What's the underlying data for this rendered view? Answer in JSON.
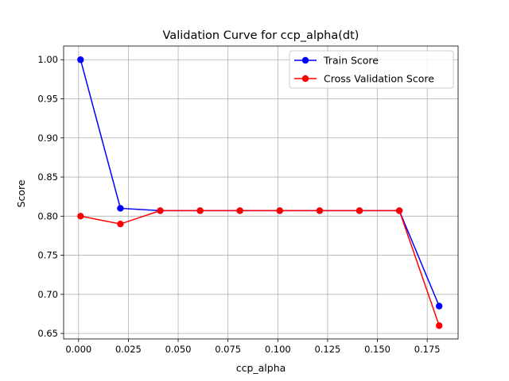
{
  "chart_data": {
    "type": "line",
    "title": "Validation Curve for ccp_alpha(dt)",
    "xlabel": "ccp_alpha",
    "ylabel": "Score",
    "xlim": [
      -0.0075,
      0.1905
    ],
    "ylim": [
      0.643,
      1.0175
    ],
    "grid": true,
    "legend_position": "top-right",
    "x_ticks": [
      "0.000",
      "0.025",
      "0.050",
      "0.075",
      "0.100",
      "0.125",
      "0.150",
      "0.175"
    ],
    "x_tick_values": [
      0.0,
      0.025,
      0.05,
      0.075,
      0.1,
      0.125,
      0.15,
      0.175
    ],
    "y_ticks": [
      "0.65",
      "0.70",
      "0.75",
      "0.80",
      "0.85",
      "0.90",
      "0.95",
      "1.00"
    ],
    "y_tick_values": [
      0.65,
      0.7,
      0.75,
      0.8,
      0.85,
      0.9,
      0.95,
      1.0
    ],
    "x": [
      0.001,
      0.021,
      0.041,
      0.061,
      0.081,
      0.101,
      0.121,
      0.141,
      0.161,
      0.181
    ],
    "series": [
      {
        "name": "Train Score",
        "color": "#0000ff",
        "values": [
          1.0,
          0.81,
          0.807,
          0.807,
          0.807,
          0.807,
          0.807,
          0.807,
          0.807,
          0.685
        ]
      },
      {
        "name": "Cross Validation Score",
        "color": "#ff0000",
        "values": [
          0.8,
          0.79,
          0.807,
          0.807,
          0.807,
          0.807,
          0.807,
          0.807,
          0.807,
          0.66
        ]
      }
    ]
  }
}
